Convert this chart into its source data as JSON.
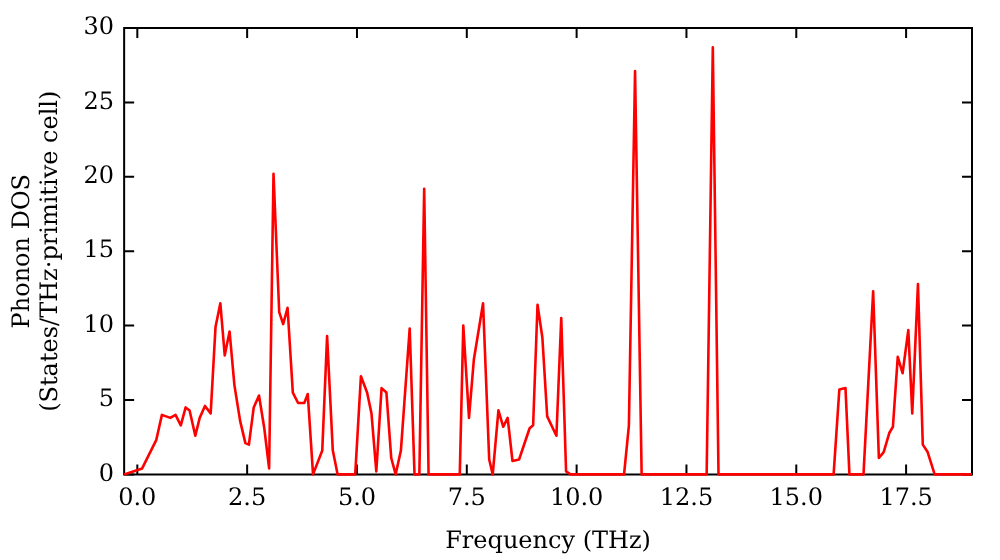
{
  "chart_data": {
    "type": "line",
    "xlabel": "Frequency (THz)",
    "ylabel": "Phonon DOS\n(States/THz·primitive cell)",
    "xlim": [
      -0.3,
      19.0
    ],
    "ylim": [
      0,
      30
    ],
    "xticks": [
      {
        "value": 0,
        "label": "0.0"
      },
      {
        "value": 2.5,
        "label": "2.5"
      },
      {
        "value": 5,
        "label": "5.0"
      },
      {
        "value": 7.5,
        "label": "7.5"
      },
      {
        "value": 10,
        "label": "10.0"
      },
      {
        "value": 12.5,
        "label": "12.5"
      },
      {
        "value": 15,
        "label": "15.0"
      },
      {
        "value": 17.5,
        "label": "17.5"
      }
    ],
    "yticks": [
      0,
      5,
      10,
      15,
      20,
      25,
      30
    ],
    "grid": false,
    "legend": false,
    "marker": "none",
    "line_style": "solid",
    "series": [
      {
        "color": "#ff0000",
        "x": [
          -0.3,
          0.11,
          0.43,
          0.56,
          0.75,
          0.87,
          0.99,
          1.1,
          1.19,
          1.32,
          1.42,
          1.54,
          1.67,
          1.78,
          1.89,
          1.99,
          2.1,
          2.21,
          2.34,
          2.46,
          2.54,
          2.65,
          2.77,
          2.89,
          3.0,
          3.1,
          3.23,
          3.32,
          3.42,
          3.54,
          3.66,
          3.8,
          3.88,
          4.0,
          4.21,
          4.32,
          4.45,
          4.56,
          4.96,
          5.09,
          5.23,
          5.33,
          5.44,
          5.56,
          5.67,
          5.78,
          5.88,
          6.0,
          6.2,
          6.31,
          6.42,
          6.53,
          6.63,
          7.34,
          7.42,
          7.55,
          7.66,
          7.87,
          8.01,
          8.09,
          8.22,
          8.33,
          8.43,
          8.54,
          8.69,
          8.93,
          9.01,
          9.11,
          9.22,
          9.33,
          9.54,
          9.65,
          9.76,
          9.86,
          11.08,
          11.19,
          11.33,
          11.48,
          12.96,
          13.1,
          13.23,
          15.85,
          15.98,
          16.12,
          16.21,
          16.53,
          16.75,
          16.88,
          16.99,
          17.12,
          17.2,
          17.31,
          17.42,
          17.55,
          17.64,
          17.77,
          17.88,
          17.99,
          18.15,
          19.0
        ],
        "values": [
          0,
          0.4,
          2.3,
          4.0,
          3.8,
          4.0,
          3.3,
          4.5,
          4.3,
          2.6,
          3.8,
          4.6,
          4.1,
          9.9,
          11.5,
          8.0,
          9.6,
          6.0,
          3.6,
          2.1,
          2.0,
          4.5,
          5.3,
          3.1,
          0.4,
          20.2,
          10.9,
          10.1,
          11.2,
          5.5,
          4.8,
          4.8,
          5.4,
          0,
          1.6,
          9.3,
          1.6,
          0,
          0,
          6.6,
          5.5,
          4.1,
          0.2,
          5.8,
          5.5,
          1.1,
          0,
          1.6,
          9.8,
          0,
          0,
          19.2,
          0,
          0,
          10.0,
          3.8,
          7.7,
          11.5,
          1.0,
          0,
          4.3,
          3.2,
          3.8,
          0.9,
          1.0,
          3.1,
          3.3,
          11.4,
          9.2,
          3.9,
          2.6,
          10.5,
          0.2,
          0,
          0,
          3.3,
          27.1,
          0,
          0,
          28.7,
          0,
          0,
          5.7,
          5.8,
          0,
          0,
          12.3,
          1.1,
          1.5,
          2.8,
          3.2,
          7.9,
          6.8,
          9.7,
          4.1,
          12.8,
          2.0,
          1.5,
          0,
          0
        ]
      }
    ]
  }
}
